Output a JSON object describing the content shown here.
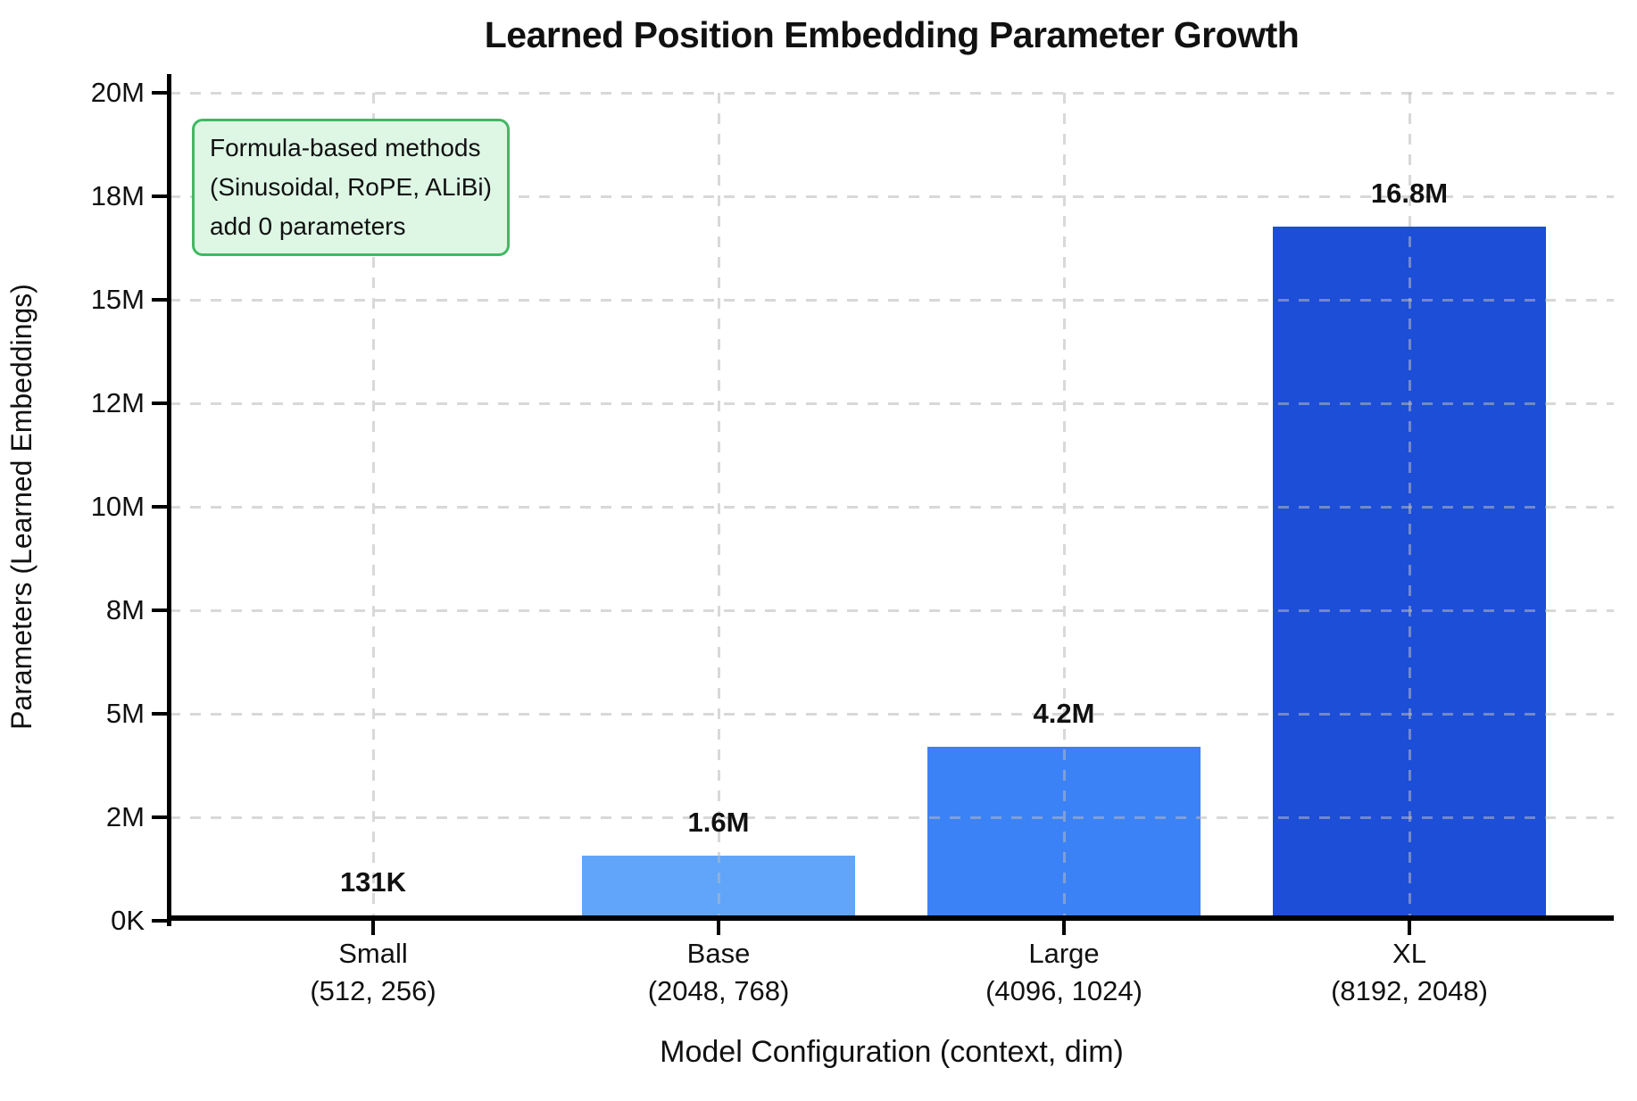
{
  "chart_data": {
    "type": "bar",
    "title": "Learned Position Embedding Parameter Growth",
    "xlabel": "Model Configuration (context, dim)",
    "ylabel": "Parameters (Learned Embeddings)",
    "ylim_millions": [
      0,
      20
    ],
    "grid": "dashed horizontal and vertical, drawn over bars",
    "yticks": [
      {
        "value_millions": 0,
        "label": "0K"
      },
      {
        "value_millions": 2.5,
        "label": "2M"
      },
      {
        "value_millions": 5,
        "label": "5M"
      },
      {
        "value_millions": 7.5,
        "label": "8M"
      },
      {
        "value_millions": 10,
        "label": "10M"
      },
      {
        "value_millions": 12.5,
        "label": "12M"
      },
      {
        "value_millions": 15,
        "label": "15M"
      },
      {
        "value_millions": 17.5,
        "label": "18M"
      },
      {
        "value_millions": 20,
        "label": "20M"
      }
    ],
    "categories": [
      {
        "name": "Small",
        "config": "(512, 256)",
        "value_millions": 0.131072,
        "value_label": "131K",
        "bar_color": "#93c5fd"
      },
      {
        "name": "Base",
        "config": "(2048, 768)",
        "value_millions": 1.572864,
        "value_label": "1.6M",
        "bar_color": "#60a5fa"
      },
      {
        "name": "Large",
        "config": "(4096, 1024)",
        "value_millions": 4.194304,
        "value_label": "4.2M",
        "bar_color": "#3b82f6"
      },
      {
        "name": "XL",
        "config": "(8192, 2048)",
        "value_millions": 16.777216,
        "value_label": "16.8M",
        "bar_color": "#1d4ed8"
      }
    ],
    "annotation": {
      "lines": [
        "Formula-based methods",
        "(Sinusoidal, RoPE, ALiBi)",
        "add 0 parameters"
      ],
      "fill_color": "#def7e5",
      "border_color": "#41b863"
    },
    "style": {
      "grid_color_rgba": "rgba(185,185,185,0.55)",
      "axis_color": "#000000",
      "background": "#ffffff"
    }
  }
}
